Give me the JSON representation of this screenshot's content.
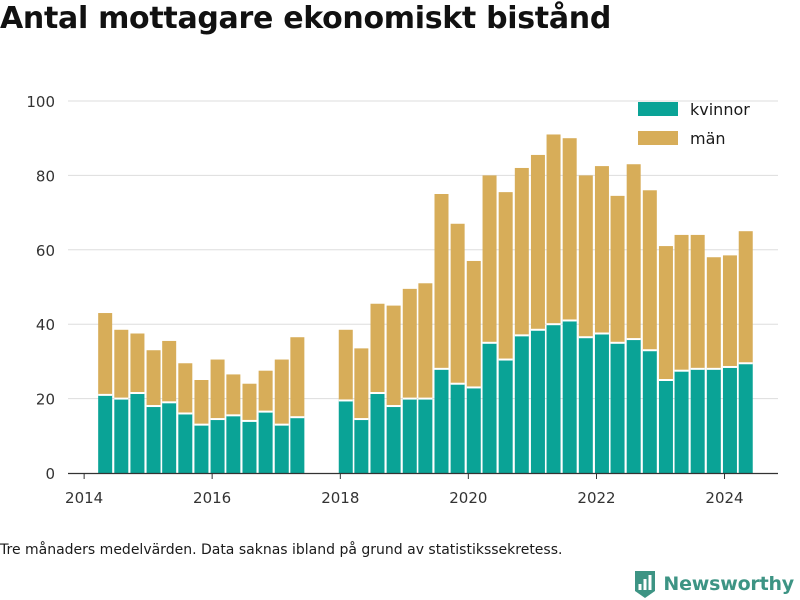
{
  "title": "Antal mottagare ekonomiskt bistånd",
  "footnote": "Tre månaders medelvärden. Data saknas ibland på grund av statistikssekretess.",
  "brand": {
    "name": "Newsworthy",
    "color": "#3d9484"
  },
  "colors": {
    "kvinnor": "#0aa396",
    "man": "#d7ad59",
    "grid": "#dddddd",
    "axis": "#333333"
  },
  "chart_data": {
    "type": "bar",
    "stacked": true,
    "x": [
      "2014-05",
      "2014-08",
      "2014-11",
      "2015-02",
      "2015-05",
      "2015-08",
      "2015-11",
      "2016-02",
      "2016-05",
      "2016-08",
      "2016-11",
      "2017-02",
      "2017-05",
      "2017-08",
      "2017-11",
      "2018-02",
      "2018-05",
      "2018-08",
      "2018-11",
      "2019-02",
      "2019-05",
      "2019-08",
      "2019-11",
      "2020-02",
      "2020-05",
      "2020-08",
      "2020-11",
      "2021-02",
      "2021-05",
      "2021-08",
      "2021-11",
      "2022-02",
      "2022-05",
      "2022-08",
      "2022-11",
      "2023-02",
      "2023-05",
      "2023-08",
      "2023-11",
      "2024-02",
      "2024-05"
    ],
    "series": [
      {
        "name": "kvinnor",
        "values": [
          21,
          20,
          21.5,
          18,
          19,
          16,
          13,
          14.5,
          15.5,
          14,
          16.5,
          13,
          15,
          null,
          null,
          19.5,
          14.5,
          21.5,
          18,
          20,
          20,
          28,
          24,
          23,
          35,
          30.5,
          37,
          38.5,
          40,
          41,
          36.5,
          37.5,
          35,
          36,
          33,
          25,
          27.5,
          28,
          28,
          28.5,
          29.5
        ]
      },
      {
        "name": "män",
        "values": [
          22,
          18.5,
          16,
          15,
          16.5,
          13.5,
          12,
          16,
          11,
          10,
          11,
          17.5,
          21.5,
          null,
          null,
          19,
          19,
          24,
          27,
          29.5,
          31,
          47,
          43,
          34,
          45,
          45,
          45,
          47,
          51,
          49,
          43.5,
          45,
          39.5,
          47,
          43,
          36,
          36.5,
          36,
          30,
          30,
          35.5
        ]
      }
    ],
    "x_ticks": [
      "2014",
      "2016",
      "2018",
      "2020",
      "2022",
      "2024"
    ],
    "y_ticks": [
      0,
      20,
      40,
      60,
      80,
      100
    ],
    "xlim": [
      "2013-10-01",
      "2024-11-01"
    ],
    "ylim": [
      0,
      100
    ],
    "legend": [
      "kvinnor",
      "män"
    ],
    "legend_position": "top-right",
    "grid": true
  }
}
